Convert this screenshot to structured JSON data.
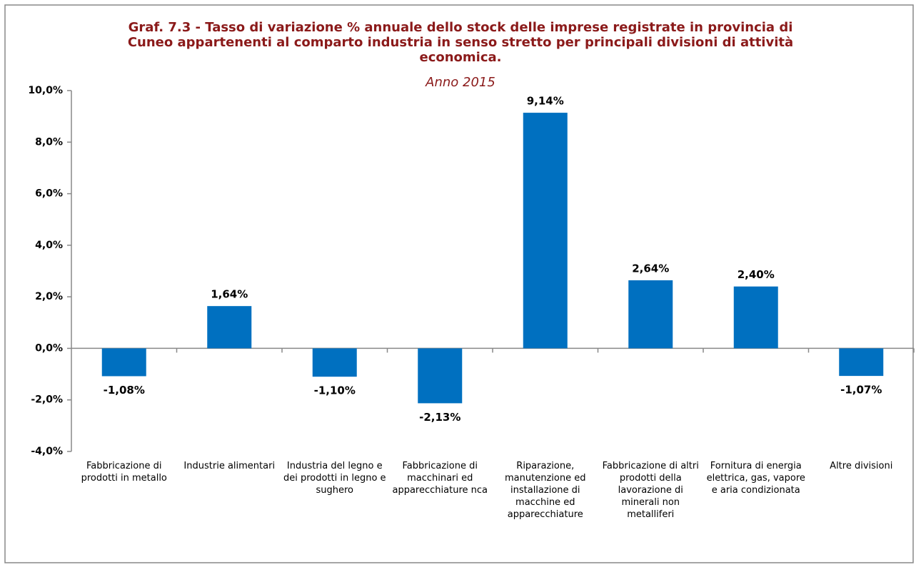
{
  "chart_data": {
    "type": "bar",
    "title": "Graf. 7.3 - Tasso di variazione % annuale dello stock delle imprese registrate in provincia di Cuneo appartenenti al comparto industria in senso stretto per principali divisioni di attività economica.",
    "subtitle": "Anno 2015",
    "categories": [
      "Fabbricazione di prodotti in metallo",
      "Industrie alimentari",
      "Industria del legno e dei prodotti in legno e sughero",
      "Fabbricazione di macchinari ed apparecchiature nca",
      "Riparazione, manutenzione ed installazione di macchine ed apparecchiature",
      "Fabbricazione di altri prodotti della lavorazione di minerali non metalliferi",
      "Fornitura di energia elettrica, gas, vapore e aria condizionata",
      "Altre divisioni"
    ],
    "values": [
      -1.08,
      1.64,
      -1.1,
      -2.13,
      9.14,
      2.64,
      2.4,
      -1.07
    ],
    "value_labels": [
      "-1,08%",
      "1,64%",
      "-1,10%",
      "-2,13%",
      "9,14%",
      "2,64%",
      "2,40%",
      "-1,07%"
    ],
    "color": "#0070c0",
    "ylim": [
      -4,
      10
    ],
    "yticks": [
      {
        "value": -4,
        "label": "-4,0%"
      },
      {
        "value": -2,
        "label": "-2,0%"
      },
      {
        "value": 0,
        "label": "0,0%"
      },
      {
        "value": 2,
        "label": "2,0%"
      },
      {
        "value": 4,
        "label": "4,0%"
      },
      {
        "value": 6,
        "label": "6,0%"
      },
      {
        "value": 8,
        "label": "8,0%"
      },
      {
        "value": 10,
        "label": "10,0%"
      }
    ],
    "grid": false
  }
}
